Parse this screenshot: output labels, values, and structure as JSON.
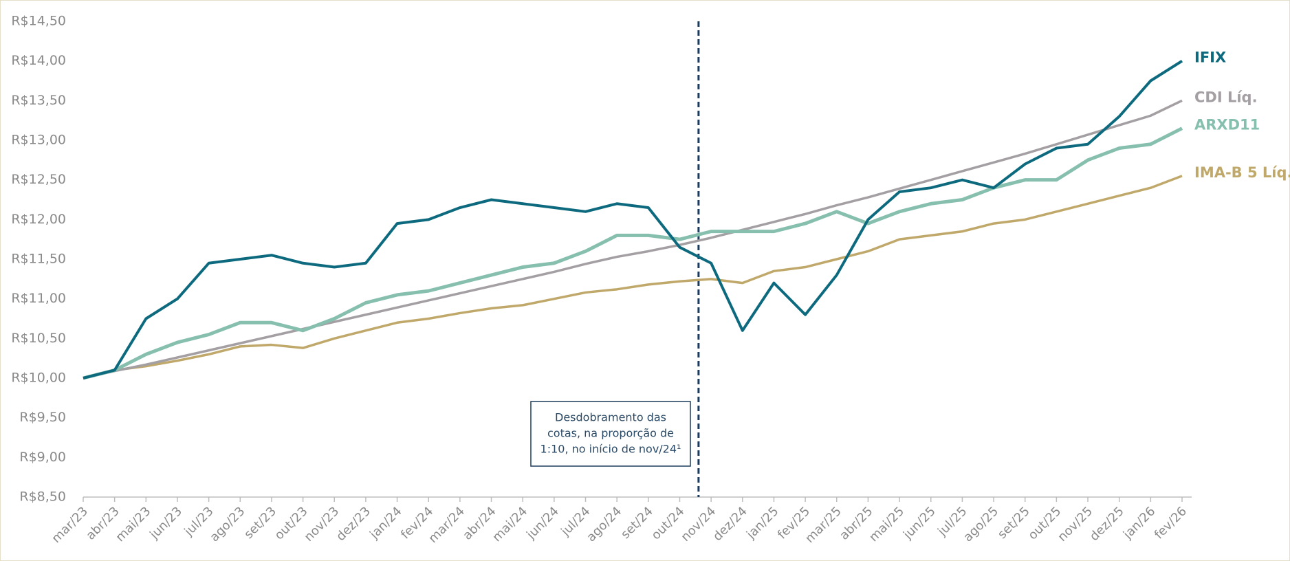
{
  "chart_data": {
    "type": "line",
    "categories": [
      "mar/23",
      "abr/23",
      "mai/23",
      "jun/23",
      "jul/23",
      "ago/23",
      "set/23",
      "out/23",
      "nov/23",
      "dez/23",
      "jan/24",
      "fev/24",
      "mar/24",
      "abr/24",
      "mai/24",
      "jun/24",
      "jul/24",
      "ago/24",
      "set/24",
      "out/24",
      "nov/24",
      "dez/24",
      "jan/25",
      "fev/25",
      "mar/25",
      "abr/25",
      "mai/25",
      "jun/25",
      "jul/25",
      "ago/25",
      "set/25",
      "out/25",
      "nov/25",
      "dez/25",
      "jan/26",
      "fev/26"
    ],
    "series": [
      {
        "name": "IMA-B 5 Líq.",
        "color": "#bfa86a",
        "values": [
          10.0,
          10.1,
          10.15,
          10.22,
          10.3,
          10.4,
          10.42,
          10.38,
          10.5,
          10.6,
          10.7,
          10.75,
          10.82,
          10.88,
          10.92,
          11.0,
          11.08,
          11.12,
          11.18,
          11.22,
          11.25,
          11.2,
          11.35,
          11.4,
          11.5,
          11.6,
          11.75,
          11.8,
          11.85,
          11.95,
          12.0,
          12.1,
          12.2,
          12.3,
          12.4,
          12.55
        ]
      },
      {
        "name": "CDI Líq.",
        "color": "#a39fa3",
        "values": [
          10.0,
          10.09,
          10.17,
          10.26,
          10.35,
          10.44,
          10.53,
          10.62,
          10.71,
          10.8,
          10.89,
          10.98,
          11.07,
          11.16,
          11.25,
          11.34,
          11.44,
          11.53,
          11.6,
          11.68,
          11.77,
          11.87,
          11.97,
          12.07,
          12.18,
          12.28,
          12.39,
          12.5,
          12.61,
          12.72,
          12.83,
          12.95,
          13.07,
          13.19,
          13.31,
          13.5
        ]
      },
      {
        "name": "ARXD11",
        "color": "#86bfae",
        "values": [
          10.0,
          10.1,
          10.3,
          10.45,
          10.55,
          10.7,
          10.7,
          10.6,
          10.75,
          10.95,
          11.05,
          11.1,
          11.2,
          11.3,
          11.4,
          11.45,
          11.6,
          11.8,
          11.8,
          11.75,
          11.85,
          11.85,
          11.85,
          11.95,
          12.1,
          11.95,
          12.1,
          12.2,
          12.25,
          12.4,
          12.5,
          12.5,
          12.75,
          12.9,
          12.95,
          13.15
        ]
      },
      {
        "name": "IFIX",
        "color": "#0d6a7e",
        "values": [
          10.0,
          10.1,
          10.75,
          11.0,
          11.45,
          11.5,
          11.55,
          11.45,
          11.4,
          11.45,
          11.95,
          12.0,
          12.15,
          12.25,
          12.2,
          12.15,
          12.1,
          12.2,
          12.15,
          11.65,
          11.45,
          10.6,
          11.2,
          10.8,
          11.3,
          12.0,
          12.35,
          12.4,
          12.5,
          12.4,
          12.7,
          12.9,
          12.95,
          13.3,
          13.75,
          14.0
        ]
      }
    ],
    "ylim": [
      8.5,
      14.5
    ],
    "yticks": [
      {
        "value": 8.5,
        "label": "R$8,50"
      },
      {
        "value": 9,
        "label": "R$9,00"
      },
      {
        "value": 9.5,
        "label": "R$9,50"
      },
      {
        "value": 10,
        "label": "R$10,00"
      },
      {
        "value": 10.5,
        "label": "R$10,50"
      },
      {
        "value": 11,
        "label": "R$11,00"
      },
      {
        "value": 11.5,
        "label": "R$11,50"
      },
      {
        "value": 12,
        "label": "R$12,00"
      },
      {
        "value": 12.5,
        "label": "R$12,50"
      },
      {
        "value": 13,
        "label": "R$13,00"
      },
      {
        "value": 13.5,
        "label": "R$13,50"
      },
      {
        "value": 14,
        "label": "R$14,00"
      },
      {
        "value": 14.5,
        "label": "R$14,50"
      }
    ],
    "annotation": [
      "Desdobramento das",
      "cotas, na proporção de",
      "1:10, no início de nov/24¹"
    ],
    "grid": false
  }
}
